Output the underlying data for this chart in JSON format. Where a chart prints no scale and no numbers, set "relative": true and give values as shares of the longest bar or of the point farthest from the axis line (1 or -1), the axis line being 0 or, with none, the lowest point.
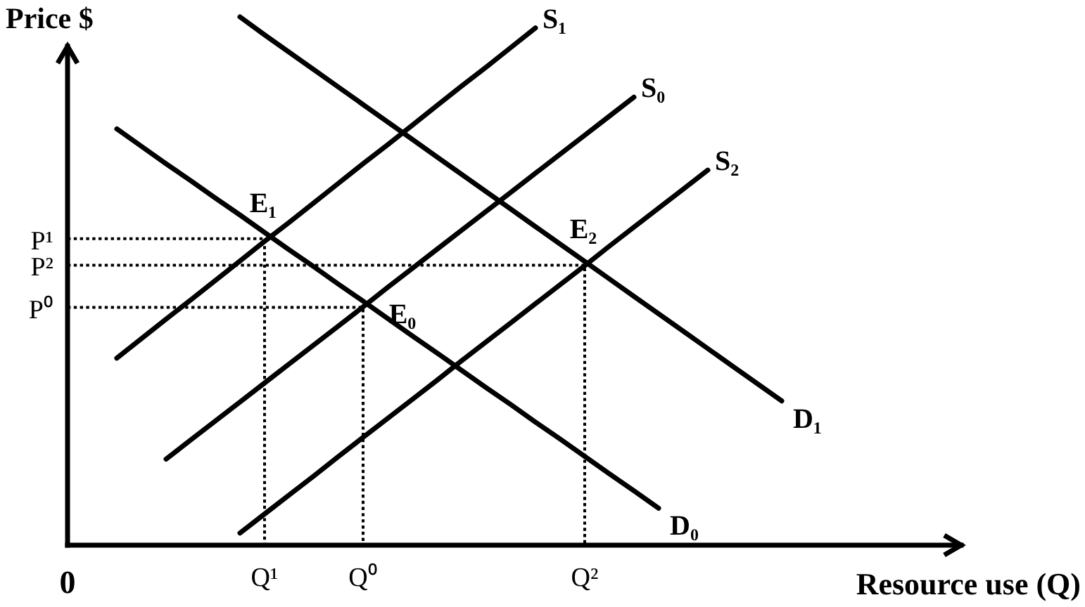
{
  "chart_data": {
    "type": "line",
    "relative": true,
    "xlabel": "Resource use (Q)",
    "ylabel": "Price $",
    "categories": [
      "0",
      null,
      null,
      null,
      null,
      null,
      null,
      null,
      "Q¹",
      null,
      null,
      null,
      "Q⁰",
      null,
      null,
      null,
      null,
      null,
      null,
      null,
      null,
      "Q²",
      null,
      null,
      null,
      null,
      null,
      null,
      null,
      null,
      null,
      null,
      null,
      null,
      null,
      null,
      null
    ],
    "series": [
      {
        "name": "S₁",
        "color": "#000000",
        "values": [
          null,
          null,
          0.354,
          0.391,
          0.428,
          0.464,
          0.501,
          0.538,
          0.575,
          0.611,
          0.648,
          0.685,
          0.722,
          0.758,
          0.795,
          0.832,
          0.869,
          0.905,
          0.942,
          0.979,
          null,
          null,
          null,
          null,
          null,
          null,
          null,
          null,
          null,
          null,
          null,
          null,
          null,
          null,
          null,
          null,
          null
        ]
      },
      {
        "name": "S₀",
        "color": "#000000",
        "values": [
          null,
          null,
          null,
          null,
          0.163,
          0.199,
          0.235,
          0.271,
          0.307,
          0.343,
          0.379,
          0.415,
          0.451,
          0.488,
          0.524,
          0.56,
          0.596,
          0.632,
          0.668,
          0.704,
          0.74,
          0.776,
          0.812,
          0.848,
          null,
          null,
          null,
          null,
          null,
          null,
          null,
          null,
          null,
          null,
          null,
          null,
          null
        ]
      },
      {
        "name": "S₂",
        "color": "#000000",
        "values": [
          null,
          null,
          null,
          null,
          null,
          null,
          null,
          0.023,
          0.059,
          0.095,
          0.131,
          0.168,
          0.204,
          0.24,
          0.276,
          0.312,
          0.349,
          0.385,
          0.421,
          0.457,
          0.493,
          0.529,
          0.566,
          0.602,
          0.638,
          0.674,
          0.71,
          null,
          null,
          null,
          null,
          null,
          null,
          null,
          null,
          null,
          null
        ]
      },
      {
        "name": "D₀",
        "color": "#000000",
        "values": [
          null,
          null,
          0.788,
          0.755,
          0.722,
          0.69,
          0.657,
          0.625,
          0.592,
          0.559,
          0.527,
          0.494,
          0.462,
          0.429,
          0.396,
          0.364,
          0.331,
          0.298,
          0.266,
          0.233,
          0.201,
          0.168,
          0.135,
          0.103,
          0.07,
          null,
          null,
          null,
          null,
          null,
          null,
          null,
          null,
          null,
          null,
          null,
          null
        ]
      },
      {
        "name": "D₁",
        "color": "#000000",
        "values": [
          null,
          null,
          null,
          null,
          null,
          null,
          null,
          1,
          0.966,
          0.933,
          0.9,
          0.867,
          0.834,
          0.801,
          0.768,
          0.735,
          0.702,
          0.669,
          0.636,
          0.603,
          0.57,
          0.537,
          0.504,
          0.471,
          0.438,
          0.405,
          0.372,
          0.339,
          0.306,
          0.273,
          null,
          null,
          null,
          null,
          null,
          null,
          null
        ]
      },
      {
        "type": "step",
        "color": "#000000",
        "line_style": "dotted",
        "values": [
          0.58,
          0.58,
          0.58,
          0.58,
          0.58,
          0.58,
          0.58,
          0.58,
          0,
          null,
          null,
          null,
          null,
          null,
          null,
          null,
          null,
          null,
          null,
          null,
          null,
          null,
          null,
          null,
          null,
          null,
          null,
          null,
          null,
          null,
          null,
          null,
          null,
          null,
          null,
          null,
          null
        ]
      },
      {
        "type": "step",
        "color": "#000000",
        "line_style": "dotted",
        "values": [
          0.53,
          0.53,
          0.53,
          0.53,
          0.53,
          0.53,
          0.53,
          0.53,
          0.53,
          0.53,
          0.53,
          0.53,
          0.53,
          0.53,
          0.53,
          0.53,
          0.53,
          0.53,
          0.53,
          0.53,
          0.53,
          0,
          null,
          null,
          null,
          null,
          null,
          null,
          null,
          null,
          null,
          null,
          null,
          null,
          null,
          null,
          null
        ]
      },
      {
        "type": "step",
        "color": "#000000",
        "line_style": "dotted",
        "values": [
          0.45,
          0.45,
          0.45,
          0.45,
          0.45,
          0.45,
          0.45,
          0.45,
          0.45,
          0.45,
          0.45,
          0.45,
          0,
          null,
          null,
          null,
          null,
          null,
          null,
          null,
          null,
          null,
          null,
          null,
          null,
          null,
          null,
          null,
          null,
          null,
          null,
          null,
          null,
          null,
          null,
          null,
          null
        ]
      }
    ],
    "annotations": [
      {
        "text": "E₁",
        "x": "Q¹",
        "y": 0.58
      },
      {
        "text": "E₀",
        "x": "Q⁰",
        "y": 0.45
      },
      {
        "text": "E₂",
        "x": "Q²",
        "y": 0.53
      },
      {
        "text": "P¹",
        "x": "0",
        "y": 0.58
      },
      {
        "text": "P²",
        "x": "0",
        "y": 0.53
      },
      {
        "text": "P⁰",
        "x": "0",
        "y": 0.45
      }
    ]
  }
}
